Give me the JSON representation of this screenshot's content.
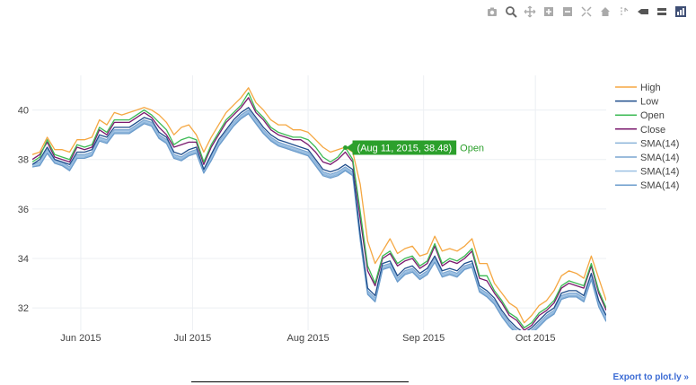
{
  "modebar": {
    "icons": [
      "camera-icon",
      "zoom-icon",
      "pan-icon",
      "zoom-in-icon",
      "zoom-out-icon",
      "autoscale-icon",
      "home-icon",
      "spike-lines-icon",
      "hover-closest-icon",
      "hover-compare-icon",
      "plotly-logo-icon"
    ]
  },
  "export_label": "Export to plot.ly »",
  "chart_data": {
    "type": "line",
    "xlim": [
      "2015-05-19",
      "2015-10-20"
    ],
    "ylim": [
      31.1,
      41.4
    ],
    "y_ticks": [
      32,
      34,
      36,
      38,
      40
    ],
    "x_ticks": [
      {
        "date": "2015-06-01",
        "label": "Jun 2015"
      },
      {
        "date": "2015-07-01",
        "label": "Jul 2015"
      },
      {
        "date": "2015-08-01",
        "label": "Aug 2015"
      },
      {
        "date": "2015-09-01",
        "label": "Sep 2015"
      },
      {
        "date": "2015-10-01",
        "label": "Oct 2015"
      }
    ],
    "grid": true,
    "legend_position": "right",
    "dates": [
      "2015-05-19",
      "2015-05-21",
      "2015-05-23",
      "2015-05-25",
      "2015-05-27",
      "2015-05-29",
      "2015-05-31",
      "2015-06-02",
      "2015-06-04",
      "2015-06-06",
      "2015-06-08",
      "2015-06-10",
      "2015-06-12",
      "2015-06-14",
      "2015-06-16",
      "2015-06-18",
      "2015-06-20",
      "2015-06-22",
      "2015-06-24",
      "2015-06-26",
      "2015-06-28",
      "2015-06-30",
      "2015-07-02",
      "2015-07-04",
      "2015-07-06",
      "2015-07-08",
      "2015-07-10",
      "2015-07-12",
      "2015-07-14",
      "2015-07-16",
      "2015-07-18",
      "2015-07-20",
      "2015-07-22",
      "2015-07-24",
      "2015-07-26",
      "2015-07-28",
      "2015-07-30",
      "2015-08-01",
      "2015-08-03",
      "2015-08-05",
      "2015-08-07",
      "2015-08-09",
      "2015-08-11",
      "2015-08-13",
      "2015-08-15",
      "2015-08-17",
      "2015-08-19",
      "2015-08-21",
      "2015-08-23",
      "2015-08-25",
      "2015-08-27",
      "2015-08-29",
      "2015-08-31",
      "2015-09-02",
      "2015-09-04",
      "2015-09-06",
      "2015-09-08",
      "2015-09-10",
      "2015-09-12",
      "2015-09-14",
      "2015-09-16",
      "2015-09-18",
      "2015-09-20",
      "2015-09-22",
      "2015-09-24",
      "2015-09-26",
      "2015-09-28",
      "2015-09-30",
      "2015-10-02",
      "2015-10-04",
      "2015-10-06",
      "2015-10-08",
      "2015-10-10",
      "2015-10-12",
      "2015-10-14",
      "2015-10-16",
      "2015-10-18",
      "2015-10-20"
    ],
    "series": [
      {
        "name": "High",
        "color": "#f5a742",
        "values": [
          38.2,
          38.3,
          38.9,
          38.4,
          38.4,
          38.3,
          38.8,
          38.8,
          38.9,
          39.6,
          39.4,
          39.9,
          39.8,
          39.9,
          40.0,
          40.1,
          40.0,
          39.8,
          39.5,
          39.0,
          39.3,
          39.4,
          39.0,
          38.3,
          38.9,
          39.4,
          39.9,
          40.2,
          40.5,
          40.9,
          40.3,
          40.0,
          39.6,
          39.4,
          39.4,
          39.2,
          39.2,
          39.1,
          38.8,
          38.5,
          38.3,
          38.4,
          38.5,
          38.3,
          37.0,
          34.7,
          33.8,
          34.3,
          34.8,
          34.2,
          34.4,
          34.5,
          34.1,
          34.2,
          34.9,
          34.3,
          34.4,
          34.3,
          34.5,
          34.8,
          33.8,
          33.8,
          33.0,
          32.6,
          32.2,
          32.0,
          31.4,
          31.7,
          32.1,
          32.3,
          32.7,
          33.3,
          33.5,
          33.4,
          33.2,
          34.1,
          33.2,
          32.3
        ]
      },
      {
        "name": "Low",
        "color": "#1f4e8c",
        "values": [
          37.8,
          38.0,
          38.5,
          38.0,
          37.9,
          37.8,
          38.3,
          38.3,
          38.4,
          39.0,
          38.9,
          39.3,
          39.3,
          39.3,
          39.5,
          39.7,
          39.6,
          39.1,
          38.9,
          38.3,
          38.2,
          38.4,
          38.5,
          37.6,
          38.2,
          38.8,
          39.2,
          39.6,
          39.9,
          40.1,
          39.7,
          39.3,
          39.0,
          38.8,
          38.7,
          38.6,
          38.5,
          38.4,
          38.0,
          37.6,
          37.5,
          37.6,
          37.8,
          37.6,
          35.0,
          32.8,
          32.5,
          33.8,
          33.9,
          33.3,
          33.6,
          33.7,
          33.4,
          33.6,
          34.1,
          33.5,
          33.6,
          33.5,
          33.8,
          33.9,
          32.9,
          32.7,
          32.4,
          31.9,
          31.5,
          31.2,
          31.0,
          31.2,
          31.5,
          31.8,
          32.0,
          32.6,
          32.7,
          32.7,
          32.5,
          33.4,
          32.3,
          31.7
        ]
      },
      {
        "name": "Open",
        "color": "#3cba54",
        "values": [
          37.9,
          38.1,
          38.8,
          38.2,
          38.1,
          38.0,
          38.6,
          38.5,
          38.6,
          39.3,
          39.1,
          39.6,
          39.6,
          39.6,
          39.8,
          40.0,
          39.8,
          39.5,
          39.2,
          38.6,
          38.8,
          38.9,
          38.8,
          37.9,
          38.6,
          39.1,
          39.6,
          39.9,
          40.2,
          40.7,
          40.0,
          39.7,
          39.3,
          39.1,
          39.0,
          38.9,
          38.9,
          38.8,
          38.5,
          38.1,
          37.9,
          38.1,
          38.48,
          38.0,
          35.9,
          33.7,
          33.0,
          34.1,
          34.3,
          33.8,
          34.0,
          34.1,
          33.7,
          33.9,
          34.6,
          33.8,
          34.0,
          33.9,
          34.1,
          34.4,
          33.3,
          33.3,
          32.7,
          32.3,
          31.8,
          31.6,
          31.2,
          31.4,
          31.8,
          32.0,
          32.3,
          32.9,
          33.1,
          33.0,
          32.9,
          33.8,
          32.7,
          32.0
        ]
      },
      {
        "name": "Close",
        "color": "#7a1a6e",
        "values": [
          38.0,
          38.2,
          38.7,
          38.1,
          38.0,
          37.9,
          38.5,
          38.4,
          38.5,
          39.2,
          39.0,
          39.5,
          39.5,
          39.5,
          39.7,
          39.9,
          39.7,
          39.3,
          39.0,
          38.5,
          38.6,
          38.7,
          38.7,
          37.8,
          38.5,
          39.0,
          39.5,
          39.8,
          40.1,
          40.5,
          39.9,
          39.6,
          39.2,
          39.0,
          38.9,
          38.8,
          38.8,
          38.6,
          38.3,
          37.9,
          37.8,
          38.0,
          38.3,
          37.9,
          35.6,
          33.5,
          32.9,
          34.0,
          34.2,
          33.7,
          33.9,
          34.0,
          33.6,
          33.8,
          34.5,
          33.7,
          33.9,
          33.8,
          34.0,
          34.3,
          33.2,
          33.1,
          32.6,
          32.2,
          31.7,
          31.5,
          31.1,
          31.3,
          31.7,
          31.9,
          32.2,
          32.8,
          33.0,
          32.9,
          32.8,
          33.7,
          32.6,
          31.9
        ]
      },
      {
        "name": "SMA(14)",
        "color": "#8ab3d9",
        "values": [
          37.7,
          37.8,
          38.3,
          37.9,
          37.8,
          37.6,
          38.1,
          38.1,
          38.2,
          38.8,
          38.7,
          39.1,
          39.1,
          39.1,
          39.3,
          39.5,
          39.4,
          38.9,
          38.7,
          38.1,
          38.0,
          38.2,
          38.3,
          37.5,
          38.0,
          38.6,
          39.0,
          39.4,
          39.7,
          39.9,
          39.5,
          39.1,
          38.8,
          38.6,
          38.5,
          38.4,
          38.3,
          38.2,
          37.8,
          37.4,
          37.3,
          37.4,
          37.6,
          37.4,
          34.8,
          32.6,
          32.3,
          33.6,
          33.7,
          33.1,
          33.4,
          33.5,
          33.2,
          33.4,
          33.9,
          33.3,
          33.4,
          33.3,
          33.6,
          33.7,
          32.7,
          32.5,
          32.2,
          31.7,
          31.3,
          31.0,
          30.9,
          31.0,
          31.3,
          31.6,
          31.8,
          32.4,
          32.5,
          32.5,
          32.3,
          33.2,
          32.1,
          31.5
        ]
      },
      {
        "name": "SMA(14)",
        "color": "#7aa6d1",
        "values": [
          37.8,
          37.9,
          38.4,
          38.0,
          37.9,
          37.7,
          38.2,
          38.2,
          38.3,
          38.9,
          38.8,
          39.2,
          39.2,
          39.2,
          39.4,
          39.6,
          39.5,
          39.0,
          38.8,
          38.2,
          38.1,
          38.3,
          38.4,
          37.6,
          38.1,
          38.7,
          39.1,
          39.5,
          39.8,
          40.0,
          39.6,
          39.2,
          38.9,
          38.7,
          38.6,
          38.5,
          38.4,
          38.3,
          37.9,
          37.5,
          37.4,
          37.5,
          37.7,
          37.5,
          34.9,
          32.7,
          32.4,
          33.7,
          33.8,
          33.2,
          33.5,
          33.6,
          33.3,
          33.5,
          34.0,
          33.4,
          33.5,
          33.4,
          33.7,
          33.8,
          32.8,
          32.6,
          32.3,
          31.8,
          31.4,
          31.1,
          30.95,
          31.1,
          31.4,
          31.7,
          31.9,
          32.5,
          32.6,
          32.6,
          32.4,
          33.3,
          32.2,
          31.6
        ]
      },
      {
        "name": "SMA(14)",
        "color": "#9cc0e3",
        "values": [
          37.75,
          37.85,
          38.35,
          37.95,
          37.85,
          37.65,
          38.15,
          38.15,
          38.25,
          38.85,
          38.75,
          39.15,
          39.15,
          39.15,
          39.35,
          39.55,
          39.45,
          38.95,
          38.75,
          38.15,
          38.05,
          38.25,
          38.35,
          37.55,
          38.05,
          38.65,
          39.05,
          39.45,
          39.75,
          39.95,
          39.55,
          39.15,
          38.85,
          38.65,
          38.55,
          38.45,
          38.35,
          38.25,
          37.85,
          37.45,
          37.35,
          37.45,
          37.65,
          37.45,
          34.85,
          32.65,
          32.35,
          33.65,
          33.75,
          33.15,
          33.45,
          33.55,
          33.25,
          33.45,
          33.95,
          33.35,
          33.45,
          33.35,
          33.65,
          33.75,
          32.75,
          32.55,
          32.25,
          31.75,
          31.35,
          31.05,
          30.9,
          31.05,
          31.35,
          31.65,
          31.85,
          32.45,
          32.55,
          32.55,
          32.35,
          33.25,
          32.15,
          31.55
        ]
      },
      {
        "name": "SMA(14)",
        "color": "#6b9ccc",
        "values": [
          37.7,
          37.75,
          38.25,
          37.85,
          37.75,
          37.55,
          38.05,
          38.05,
          38.15,
          38.75,
          38.65,
          39.05,
          39.05,
          39.05,
          39.25,
          39.45,
          39.35,
          38.85,
          38.65,
          38.05,
          37.95,
          38.15,
          38.25,
          37.45,
          37.95,
          38.55,
          38.95,
          39.35,
          39.65,
          39.85,
          39.45,
          39.05,
          38.75,
          38.55,
          38.45,
          38.35,
          38.25,
          38.15,
          37.75,
          37.35,
          37.25,
          37.35,
          37.55,
          37.35,
          34.75,
          32.55,
          32.25,
          33.55,
          33.65,
          33.05,
          33.35,
          33.45,
          33.15,
          33.35,
          33.85,
          33.25,
          33.35,
          33.25,
          33.55,
          33.65,
          32.65,
          32.45,
          32.15,
          31.65,
          31.25,
          30.95,
          30.85,
          30.95,
          31.25,
          31.55,
          31.75,
          32.35,
          32.45,
          32.45,
          32.25,
          33.15,
          32.05,
          31.45
        ]
      }
    ],
    "annotation": {
      "text": "(Aug 11, 2015, 38.48)",
      "series_label": "Open",
      "date": "2015-08-11",
      "value": 38.48,
      "color": "#2ca02c"
    }
  }
}
